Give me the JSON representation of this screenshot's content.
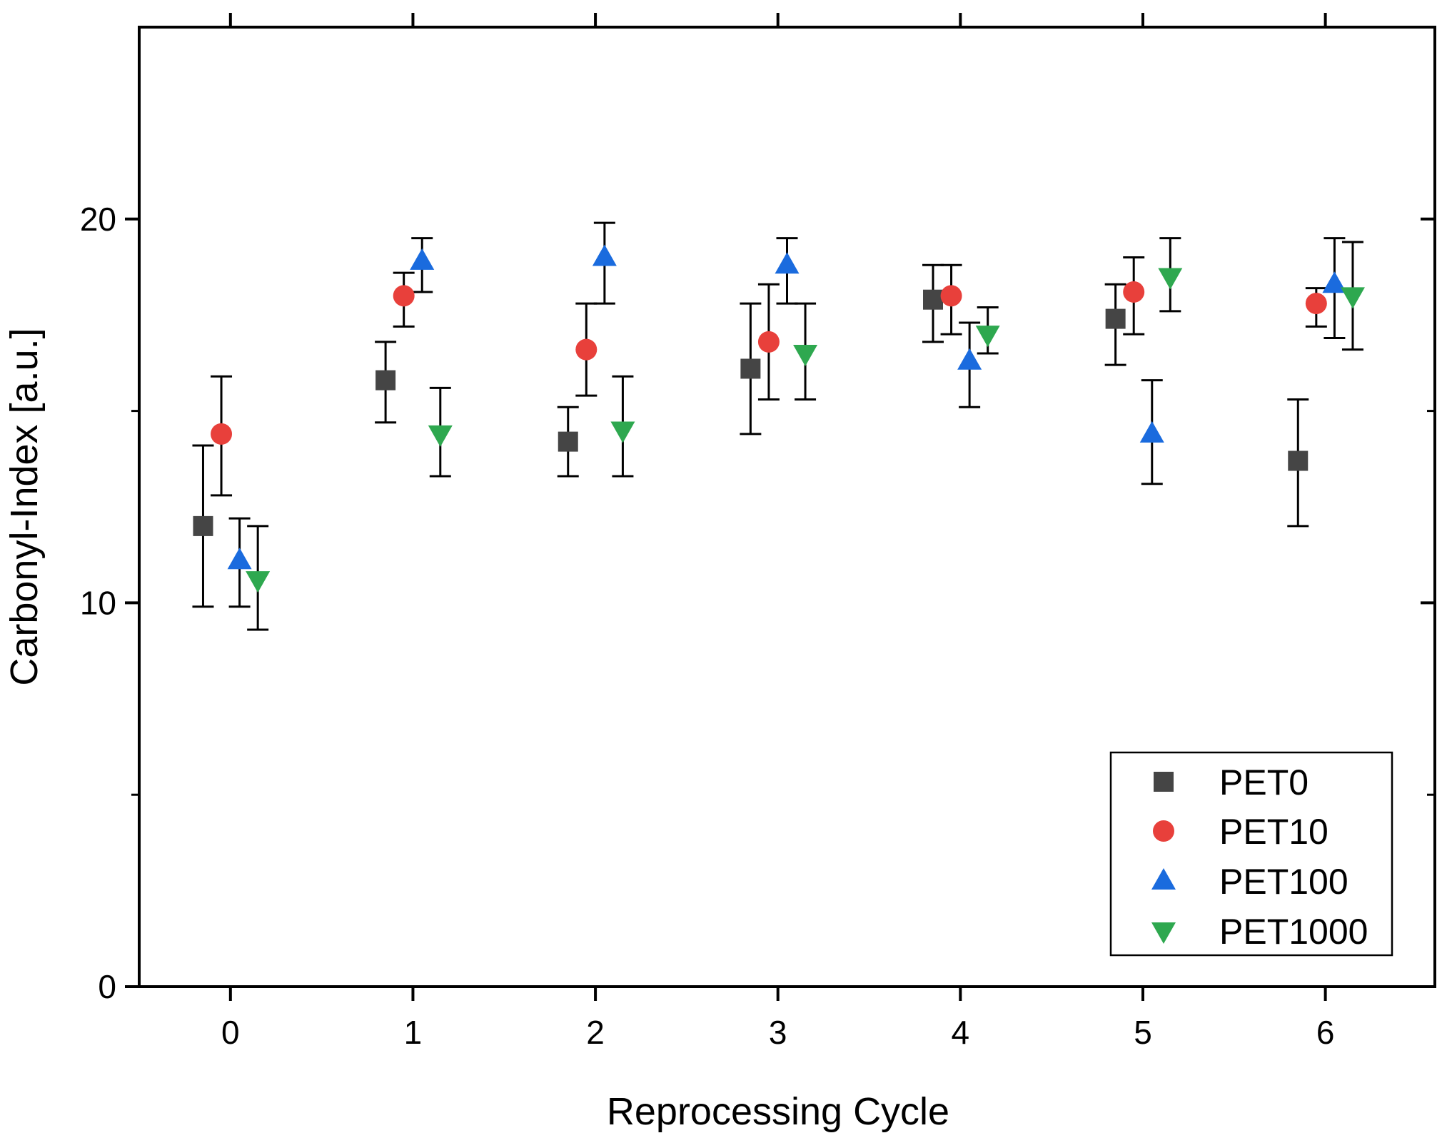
{
  "chart_data": {
    "type": "scatter",
    "xlabel": "Reprocessing Cycle",
    "ylabel": "Carbonyl-Index [a.u.]",
    "xlim": [
      -0.5,
      6.6
    ],
    "ylim": [
      0,
      25
    ],
    "x_ticks": [
      0,
      1,
      2,
      3,
      4,
      5,
      6
    ],
    "y_ticks": [
      0,
      10,
      20
    ],
    "y_minor_ticks": [
      5,
      15
    ],
    "grid": false,
    "legend_position": "bottom-right",
    "categories": [
      0,
      1,
      2,
      3,
      4,
      5,
      6
    ],
    "series": [
      {
        "name": "PET0",
        "marker": "square",
        "color": "#454545",
        "offset": -0.15,
        "values": [
          12.0,
          15.8,
          14.2,
          16.1,
          17.9,
          17.4,
          13.7
        ],
        "err_low": [
          9.9,
          14.7,
          13.3,
          14.4,
          16.8,
          16.2,
          12.0
        ],
        "err_high": [
          14.1,
          16.8,
          15.1,
          17.8,
          18.8,
          18.3,
          15.3
        ]
      },
      {
        "name": "PET10",
        "marker": "circle",
        "color": "#e8403b",
        "offset": -0.05,
        "values": [
          14.4,
          18.0,
          16.6,
          16.8,
          18.0,
          18.1,
          17.8
        ],
        "err_low": [
          12.8,
          17.2,
          15.4,
          15.3,
          17.0,
          17.0,
          17.2
        ],
        "err_high": [
          15.9,
          18.6,
          17.8,
          18.3,
          18.8,
          19.0,
          18.2
        ]
      },
      {
        "name": "PET100",
        "marker": "triangle-up",
        "color": "#1a6bde",
        "offset": 0.05,
        "values": [
          11.1,
          18.9,
          19.0,
          18.8,
          16.3,
          14.4,
          18.3
        ],
        "err_low": [
          9.9,
          18.1,
          17.8,
          17.8,
          15.1,
          13.1,
          16.9
        ],
        "err_high": [
          12.2,
          19.5,
          19.9,
          19.5,
          17.3,
          15.8,
          19.5
        ]
      },
      {
        "name": "PET1000",
        "marker": "triangle-down",
        "color": "#2ea84f",
        "offset": 0.15,
        "values": [
          10.6,
          14.4,
          14.5,
          16.5,
          17.0,
          18.5,
          18.0
        ],
        "err_low": [
          9.3,
          13.3,
          13.3,
          15.3,
          16.5,
          17.6,
          16.6
        ],
        "err_high": [
          12.0,
          15.6,
          15.9,
          17.8,
          17.7,
          19.5,
          19.4
        ]
      }
    ]
  }
}
